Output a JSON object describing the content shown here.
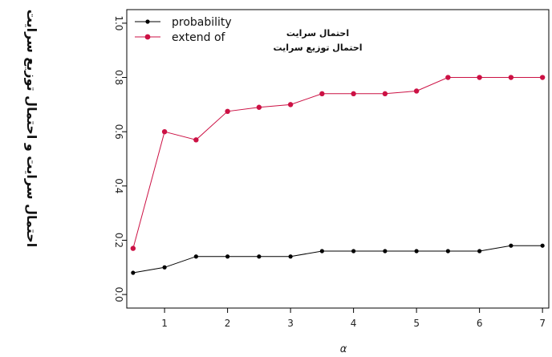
{
  "chart_data": {
    "type": "line",
    "title": "",
    "xlabel": "α",
    "ylabel": "احتمال سرایت و احتمال توزیع سرایت",
    "xlim": [
      0.4,
      7.1
    ],
    "ylim": [
      -0.05,
      1.05
    ],
    "x_ticks": [
      "1",
      "2",
      "3",
      "4",
      "5",
      "6",
      "7"
    ],
    "y_ticks": [
      "0.0",
      "0.2",
      "0.4",
      "0.6",
      "0.8",
      "1.0"
    ],
    "annotation_lines": [
      "احتمال سرایت",
      "احتمال توزیع سرایت"
    ],
    "legend": {
      "placement": "top-left",
      "entries": [
        {
          "label": "probability",
          "color": "#000000"
        },
        {
          "label": "extend of",
          "color": "#cc1144"
        }
      ]
    },
    "grid": false,
    "x": [
      0.5,
      1.0,
      1.5,
      2.0,
      2.5,
      3.0,
      3.5,
      4.0,
      4.5,
      5.0,
      5.5,
      6.0,
      6.5,
      7.0
    ],
    "series": [
      {
        "name": "probability",
        "color": "#000000",
        "values": [
          0.08,
          0.1,
          0.14,
          0.14,
          0.14,
          0.14,
          0.16,
          0.16,
          0.16,
          0.16,
          0.16,
          0.16,
          0.18,
          0.18
        ]
      },
      {
        "name": "extend of",
        "color": "#cc1144",
        "values": [
          0.17,
          0.6,
          0.57,
          0.675,
          0.69,
          0.7,
          0.74,
          0.74,
          0.74,
          0.75,
          0.8,
          0.8,
          0.8,
          0.8
        ]
      }
    ]
  }
}
